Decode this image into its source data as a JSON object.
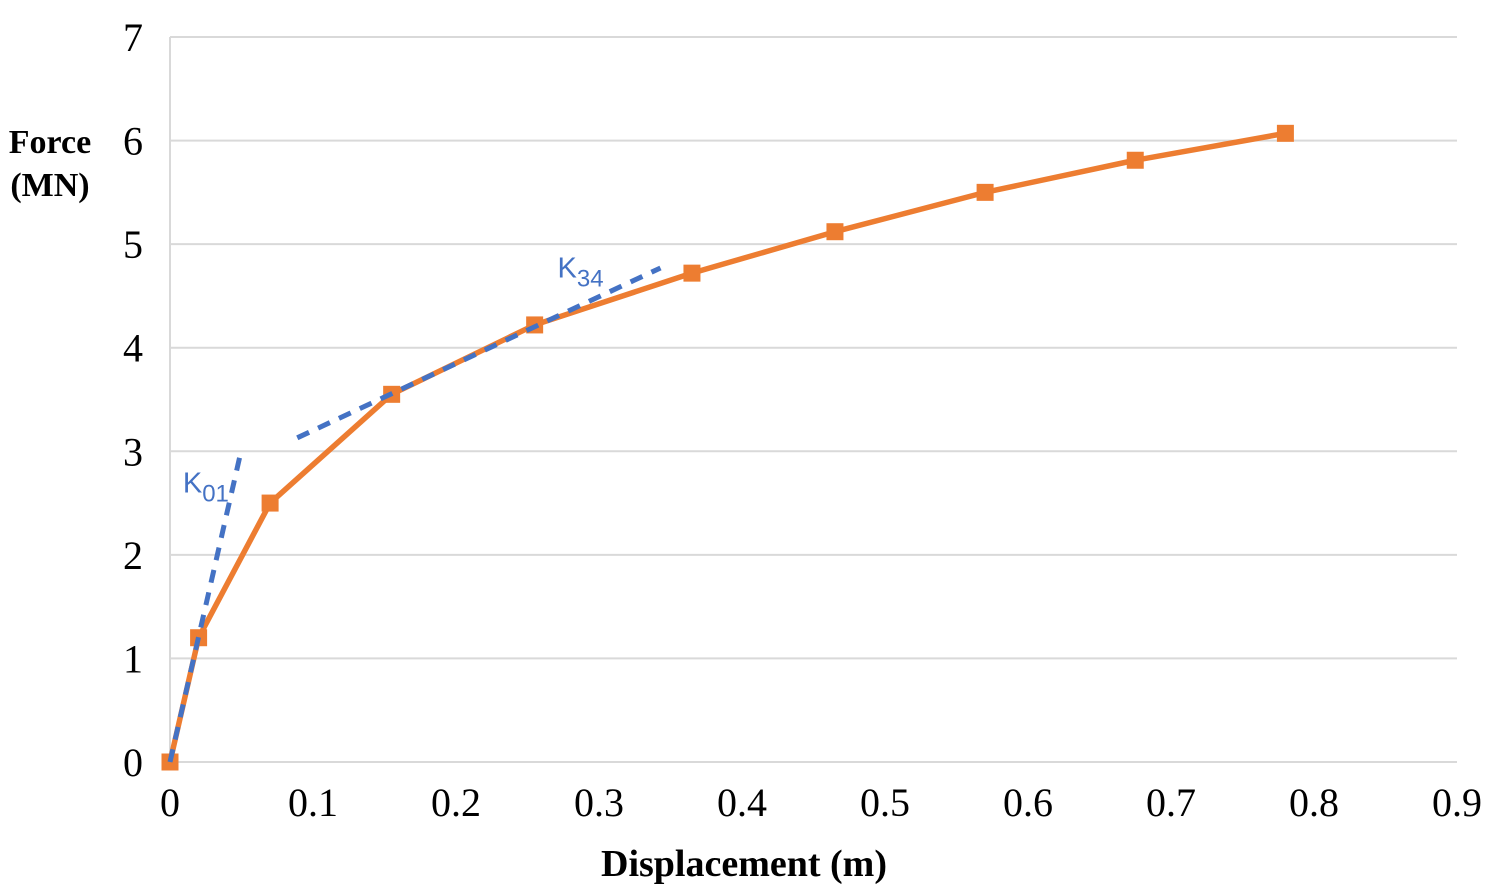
{
  "chart_data": {
    "type": "line",
    "title": "",
    "xlabel": "Displacement (m)",
    "ylabel": "Force (MN)",
    "ylabel_lines": [
      "Force",
      "(MN)"
    ],
    "xlim": [
      0,
      0.9
    ],
    "ylim": [
      0,
      7
    ],
    "x_tick_values": [
      0,
      0.1,
      0.2,
      0.3,
      0.4,
      0.5,
      0.6,
      0.7,
      0.8,
      0.9
    ],
    "x_tick_labels": [
      "0",
      "0.1",
      "0.2",
      "0.3",
      "0.4",
      "0.5",
      "0.6",
      "0.7",
      "0.8",
      "0.9"
    ],
    "y_tick_values": [
      0,
      1,
      2,
      3,
      4,
      5,
      6,
      7
    ],
    "y_tick_labels": [
      "0",
      "1",
      "2",
      "3",
      "4",
      "5",
      "6",
      "7"
    ],
    "grid": "horizontal-gridlines-on",
    "legend": "none",
    "colors": {
      "curve_orange": "#ED7D31",
      "stiffness_blue": "#4472C4",
      "gridline_gray": "#D9D9D9",
      "axis_text": "#000000"
    },
    "series": [
      {
        "id": "force-curve",
        "name": "Force-displacement curve",
        "style": "solid",
        "marker": "square",
        "color": "#ED7D31",
        "x": [
          0,
          0.02,
          0.07,
          0.155,
          0.255,
          0.365,
          0.465,
          0.57,
          0.675,
          0.78
        ],
        "y": [
          0,
          1.2,
          2.5,
          3.55,
          4.22,
          4.72,
          5.12,
          5.5,
          5.81,
          6.07
        ]
      },
      {
        "id": "k01-tangent-line",
        "name": "K01 stiffness line",
        "style": "dashed",
        "marker": "none",
        "color": "#4472C4",
        "x": [
          0,
          0.05
        ],
        "y": [
          0,
          3.02
        ]
      },
      {
        "id": "k34-secant-line",
        "name": "K34 stiffness line",
        "style": "dashed",
        "marker": "none",
        "color": "#4472C4",
        "x": [
          0.089,
          0.343
        ],
        "y": [
          3.13,
          4.77
        ]
      }
    ],
    "annotations": [
      {
        "id": "k01-label",
        "main": "K",
        "sub": "01",
        "x": 0.009,
        "y": 2.6,
        "color": "#4472C4"
      },
      {
        "id": "k34-label",
        "main": "K",
        "sub": "34",
        "x": 0.271,
        "y": 4.68,
        "color": "#4472C4"
      }
    ]
  }
}
